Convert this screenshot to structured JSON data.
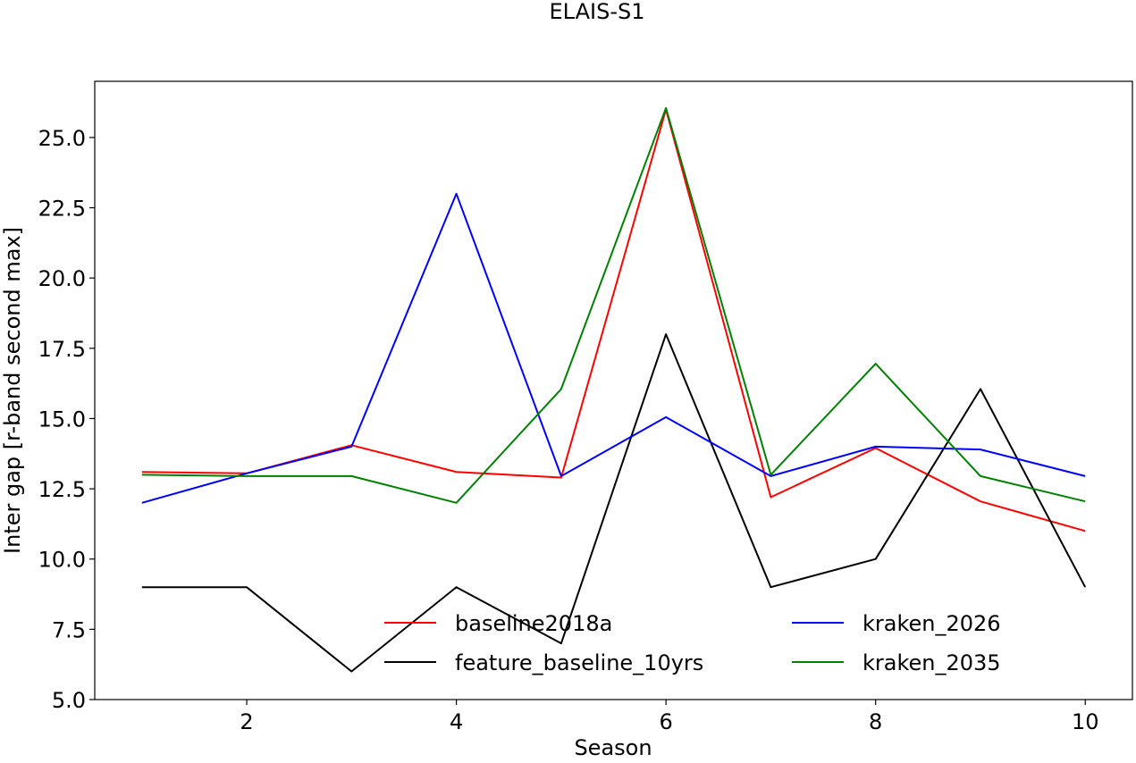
{
  "chart_data": {
    "type": "line",
    "title": "ELAIS-S1",
    "xlabel": "Season",
    "ylabel": "Inter gap [r-band second max]",
    "xlim": [
      0.55,
      10.45
    ],
    "ylim": [
      5.0,
      27.0
    ],
    "xticks": [
      2,
      4,
      6,
      8,
      10
    ],
    "xtick_labels": [
      "2",
      "4",
      "6",
      "8",
      "10"
    ],
    "yticks": [
      5.0,
      7.5,
      10.0,
      12.5,
      15.0,
      17.5,
      20.0,
      22.5,
      25.0
    ],
    "ytick_labels": [
      "5.0",
      "7.5",
      "10.0",
      "12.5",
      "15.0",
      "17.5",
      "20.0",
      "22.5",
      "25.0"
    ],
    "grid": false,
    "legend_position": "lower-center",
    "x": [
      1,
      2,
      3,
      4,
      5,
      6,
      7,
      8,
      9,
      10
    ],
    "series": [
      {
        "name": "baseline2018a",
        "color": "#ff0000",
        "values": [
          13.1,
          13.05,
          14.05,
          13.1,
          12.9,
          26.0,
          12.2,
          13.95,
          12.05,
          11.0
        ]
      },
      {
        "name": "feature_baseline_10yrs",
        "color": "#000000",
        "values": [
          9.0,
          9.0,
          6.0,
          9.0,
          7.0,
          18.0,
          9.0,
          10.0,
          16.05,
          9.0
        ]
      },
      {
        "name": "kraken_2026",
        "color": "#0000ff",
        "values": [
          12.0,
          13.05,
          14.0,
          23.0,
          12.95,
          15.05,
          12.95,
          14.0,
          13.9,
          12.95
        ]
      },
      {
        "name": "kraken_2035",
        "color": "#008000",
        "values": [
          13.0,
          12.95,
          12.95,
          12.0,
          16.05,
          26.05,
          13.0,
          16.95,
          12.95,
          12.05
        ]
      }
    ]
  }
}
